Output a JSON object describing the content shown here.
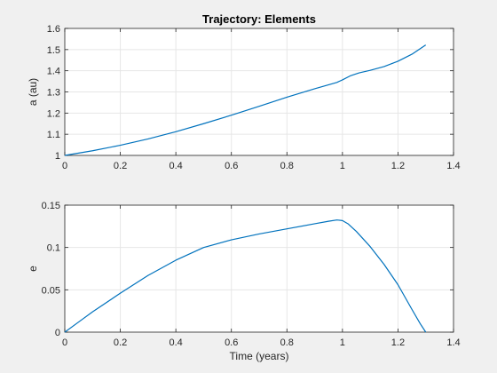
{
  "colors": {
    "background": "#f0f0f0",
    "axes_bg": "#ffffff",
    "axis_line": "#262626",
    "grid": "#e6e6e6",
    "series": "#0072bd"
  },
  "chart_data": [
    {
      "type": "line",
      "title": "Trajectory: Elements",
      "xlabel": "",
      "ylabel": "a (au)",
      "xlim": [
        0,
        1.4
      ],
      "ylim": [
        1,
        1.6
      ],
      "xticks": [
        "0",
        "0.2",
        "0.4",
        "0.6",
        "0.8",
        "1",
        "1.2",
        "1.4"
      ],
      "yticks": [
        "1",
        "1.1",
        "1.2",
        "1.3",
        "1.4",
        "1.5",
        "1.6"
      ],
      "grid": true,
      "series": [
        {
          "x": [
            0,
            0.1,
            0.2,
            0.3,
            0.4,
            0.5,
            0.6,
            0.7,
            0.8,
            0.9,
            0.98,
            1.0,
            1.03,
            1.06,
            1.1,
            1.15,
            1.2,
            1.25,
            1.3
          ],
          "y": [
            1.0,
            1.022,
            1.048,
            1.078,
            1.112,
            1.15,
            1.19,
            1.232,
            1.275,
            1.315,
            1.345,
            1.357,
            1.377,
            1.39,
            1.402,
            1.42,
            1.445,
            1.478,
            1.522
          ]
        }
      ]
    },
    {
      "type": "line",
      "title": "",
      "xlabel": "Time (years)",
      "ylabel": "e",
      "xlim": [
        0,
        1.4
      ],
      "ylim": [
        0,
        0.15
      ],
      "xticks": [
        "0",
        "0.2",
        "0.4",
        "0.6",
        "0.8",
        "1",
        "1.2",
        "1.4"
      ],
      "yticks": [
        "0",
        "0.05",
        "0.1",
        "0.15"
      ],
      "grid": true,
      "series": [
        {
          "x": [
            0,
            0.05,
            0.1,
            0.2,
            0.3,
            0.4,
            0.5,
            0.6,
            0.7,
            0.8,
            0.9,
            0.95,
            0.98,
            1.0,
            1.02,
            1.05,
            1.1,
            1.15,
            1.2,
            1.25,
            1.28,
            1.3
          ],
          "y": [
            0,
            0.012,
            0.024,
            0.046,
            0.067,
            0.085,
            0.1,
            0.109,
            0.116,
            0.122,
            0.128,
            0.131,
            0.1325,
            0.1318,
            0.128,
            0.119,
            0.101,
            0.08,
            0.056,
            0.027,
            0.01,
            0
          ]
        }
      ]
    }
  ]
}
